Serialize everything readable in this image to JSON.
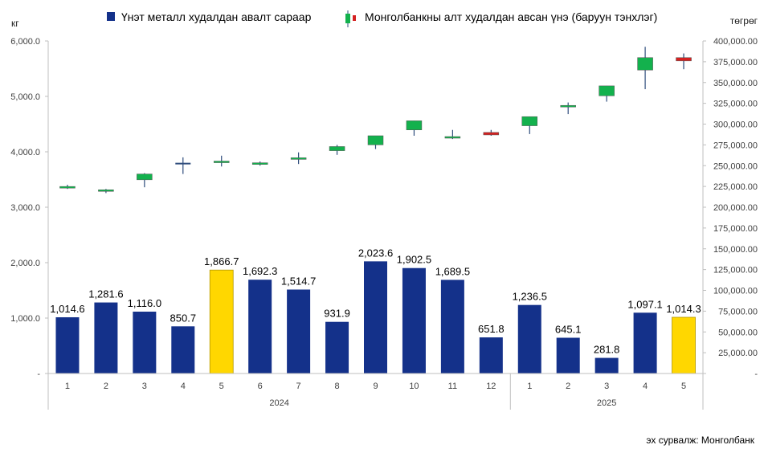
{
  "chart_data": {
    "type": "bar+candlestick",
    "left_unit": "кг",
    "right_unit": "төгрөг",
    "left_ticks": [
      "-",
      "1,000.0",
      "2,000.0",
      "3,000.0",
      "4,000.0",
      "5,000.0",
      "6,000.0"
    ],
    "left_tick_values": [
      0,
      1000,
      2000,
      3000,
      4000,
      5000,
      6000
    ],
    "right_ticks": [
      "-",
      "25,000.00",
      "50,000.00",
      "75,000.00",
      "100,000.00",
      "125,000.00",
      "150,000.00",
      "175,000.00",
      "200,000.00",
      "225,000.00",
      "250,000.00",
      "275,000.00",
      "300,000.00",
      "325,000.00",
      "350,000.00",
      "375,000.00",
      "400,000.00"
    ],
    "right_tick_values": [
      0,
      25000,
      50000,
      75000,
      100000,
      125000,
      150000,
      175000,
      200000,
      225000,
      250000,
      275000,
      300000,
      325000,
      350000,
      375000,
      400000
    ],
    "ylim_left": [
      0,
      6000
    ],
    "ylim_right": [
      0,
      400000
    ],
    "categories": [
      "1",
      "2",
      "3",
      "4",
      "5",
      "6",
      "7",
      "8",
      "9",
      "10",
      "11",
      "12",
      "1",
      "2",
      "3",
      "4",
      "5"
    ],
    "groups": [
      {
        "label": "2024",
        "count": 12
      },
      {
        "label": "2025",
        "count": 5
      }
    ],
    "series": [
      {
        "name": "Үнэт металл худалдан авалт сараар",
        "axis": "left",
        "kind": "bar",
        "values": [
          1014.6,
          1281.6,
          1116.0,
          850.7,
          1866.7,
          1692.3,
          1514.7,
          931.9,
          2023.6,
          1902.5,
          1689.5,
          651.8,
          1236.5,
          645.1,
          281.8,
          1097.1,
          1014.3
        ],
        "labels": [
          "1,014.6",
          "1,281.6",
          "1,116.0",
          "850.7",
          "1,866.7",
          "1,692.3",
          "1,514.7",
          "931.9",
          "2,023.6",
          "1,902.5",
          "1,689.5",
          "651.8",
          "1,236.5",
          "645.1",
          "281.8",
          "1,097.1",
          "1,014.3"
        ],
        "highlight": [
          false,
          false,
          false,
          false,
          true,
          false,
          false,
          false,
          false,
          false,
          false,
          false,
          false,
          false,
          false,
          false,
          true
        ]
      },
      {
        "name": "Монголбанкны алт худалдан авсан үнэ (баруун тэнхлэг)",
        "axis": "right",
        "kind": "candlestick",
        "open": [
          223000,
          220000,
          233000,
          252500,
          254500,
          251500,
          258500,
          268000,
          275000,
          293000,
          284500,
          290000,
          298000,
          321000,
          334000,
          365000,
          380000
        ],
        "close": [
          225000,
          221000,
          240000,
          252500,
          255500,
          253500,
          259500,
          273000,
          286000,
          304000,
          285000,
          287000,
          309000,
          322500,
          346000,
          380000,
          376000
        ],
        "high": [
          227000,
          222000,
          241000,
          260000,
          262000,
          255000,
          266000,
          275000,
          286000,
          304000,
          293000,
          293000,
          309000,
          326000,
          346000,
          393000,
          385000
        ],
        "low": [
          222000,
          217000,
          224000,
          240000,
          249000,
          250000,
          252000,
          263000,
          270000,
          286000,
          282000,
          286000,
          288000,
          312000,
          327000,
          342000,
          366000
        ]
      }
    ],
    "source": "эх сурвалж: Монголбанк"
  },
  "colors": {
    "bar": "#14318a",
    "highlight": "#ffd700",
    "up": "#13b14d",
    "down": "#d42121",
    "wick": "#2e4c7c",
    "axis": "#bfbfbf"
  }
}
